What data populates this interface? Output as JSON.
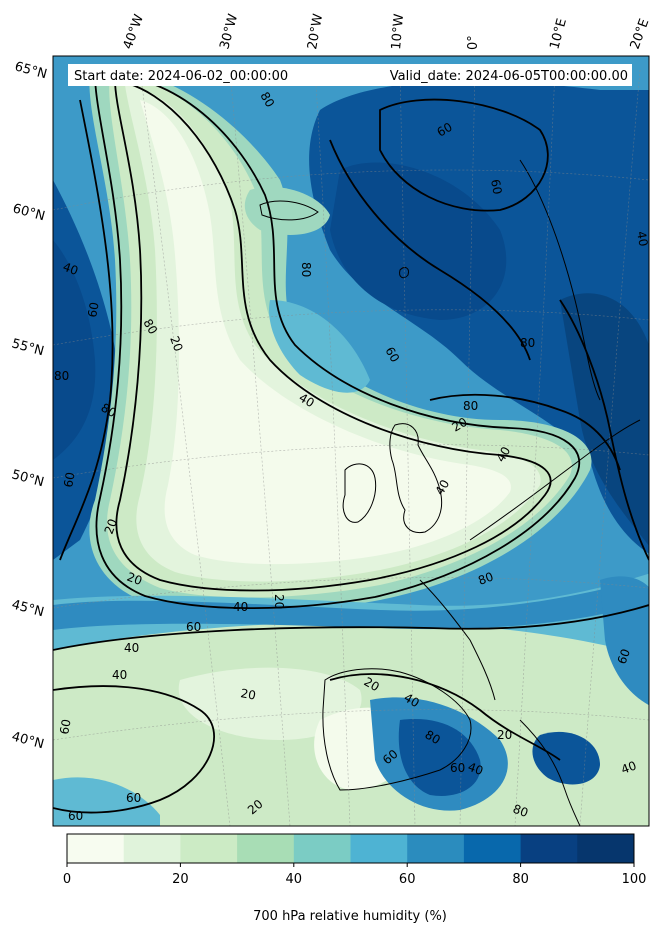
{
  "header": {
    "start_date": "Start date: 2024-06-02_00:00:00",
    "valid_date": "Valid_date: 2024-06-05T00:00:00.00"
  },
  "longitude_labels": [
    "40°W",
    "30°W",
    "20°W",
    "10°W",
    "0°",
    "10°E",
    "20°E"
  ],
  "latitude_labels": [
    "65°N",
    "60°N",
    "55°N",
    "50°N",
    "45°N",
    "40°N"
  ],
  "contour_labels": [
    "20",
    "20",
    "20",
    "20",
    "20",
    "20",
    "20",
    "20",
    "20",
    "40",
    "40",
    "40",
    "40",
    "40",
    "40",
    "40",
    "40",
    "40",
    "40",
    "40",
    "60",
    "60",
    "60",
    "60",
    "60",
    "60",
    "60",
    "60",
    "60",
    "60",
    "60",
    "60",
    "80",
    "80",
    "80",
    "80",
    "80",
    "80",
    "80",
    "80",
    "80",
    "80"
  ],
  "colorbar": {
    "label": "700 hPa relative humidity (%)",
    "ticks": [
      "0",
      "20",
      "40",
      "60",
      "80",
      "100"
    ],
    "colors": [
      "#f7fcf0",
      "#e0f3db",
      "#ccebc5",
      "#a8ddb5",
      "#7bccc4",
      "#4eb3d3",
      "#2b8cbe",
      "#0868ac",
      "#084081",
      "#06366d"
    ]
  },
  "map_colors": {
    "dry": "#f4fbec",
    "dry_mid": "#e3f4dd",
    "moist_low": "#cdeac6",
    "moist_mid": "#9fd8bf",
    "humid": "#5fbad3",
    "humid_high": "#2f8bc0",
    "saturated": "#0b5599"
  }
}
